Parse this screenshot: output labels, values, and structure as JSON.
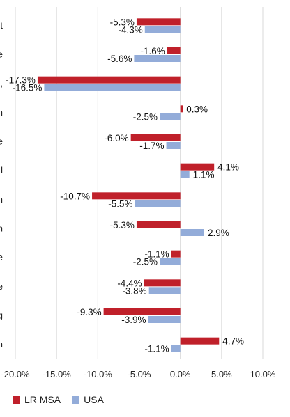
{
  "chart_data": {
    "type": "bar",
    "orientation": "horizontal",
    "categories": [
      "t",
      "e",
      ",",
      "n",
      "e",
      "l",
      "n",
      "n",
      "e",
      "e",
      "g",
      "n"
    ],
    "series": [
      {
        "name": "LR MSA",
        "color": "#c0202a",
        "values": [
          -5.3,
          -1.6,
          -17.3,
          0.3,
          -6.0,
          4.1,
          -10.7,
          -5.3,
          -1.1,
          -4.4,
          -9.3,
          4.7
        ],
        "labels": [
          "-5.3%",
          "-1.6%",
          "-17.3%",
          "0.3%",
          "-6.0%",
          "4.1%",
          "-10.7%",
          "-5.3%",
          "-1.1%",
          "-4.4%",
          "-9.3%",
          "4.7%"
        ]
      },
      {
        "name": "USA",
        "color": "#93acd9",
        "values": [
          -4.3,
          -5.6,
          -16.5,
          -2.5,
          -1.7,
          1.1,
          -5.5,
          2.9,
          -2.5,
          -3.8,
          -3.9,
          -1.1
        ],
        "labels": [
          "-4.3%",
          "-5.6%",
          "-16.5%",
          "-2.5%",
          "-1.7%",
          "1.1%",
          "-5.5%",
          "2.9%",
          "-2.5%",
          "-3.8%",
          "-3.9%",
          "-1.1%"
        ]
      }
    ],
    "xlim": [
      -20,
      10
    ],
    "xticks": [
      -20,
      -15,
      -10,
      -5,
      0,
      5,
      10
    ],
    "xtick_labels": [
      "-20.0%",
      "-15.0%",
      "-10.0%",
      "-5.0%",
      "0.0%",
      "5.0%",
      "10.0%"
    ],
    "grid": true,
    "legend_position": "bottom-left"
  }
}
